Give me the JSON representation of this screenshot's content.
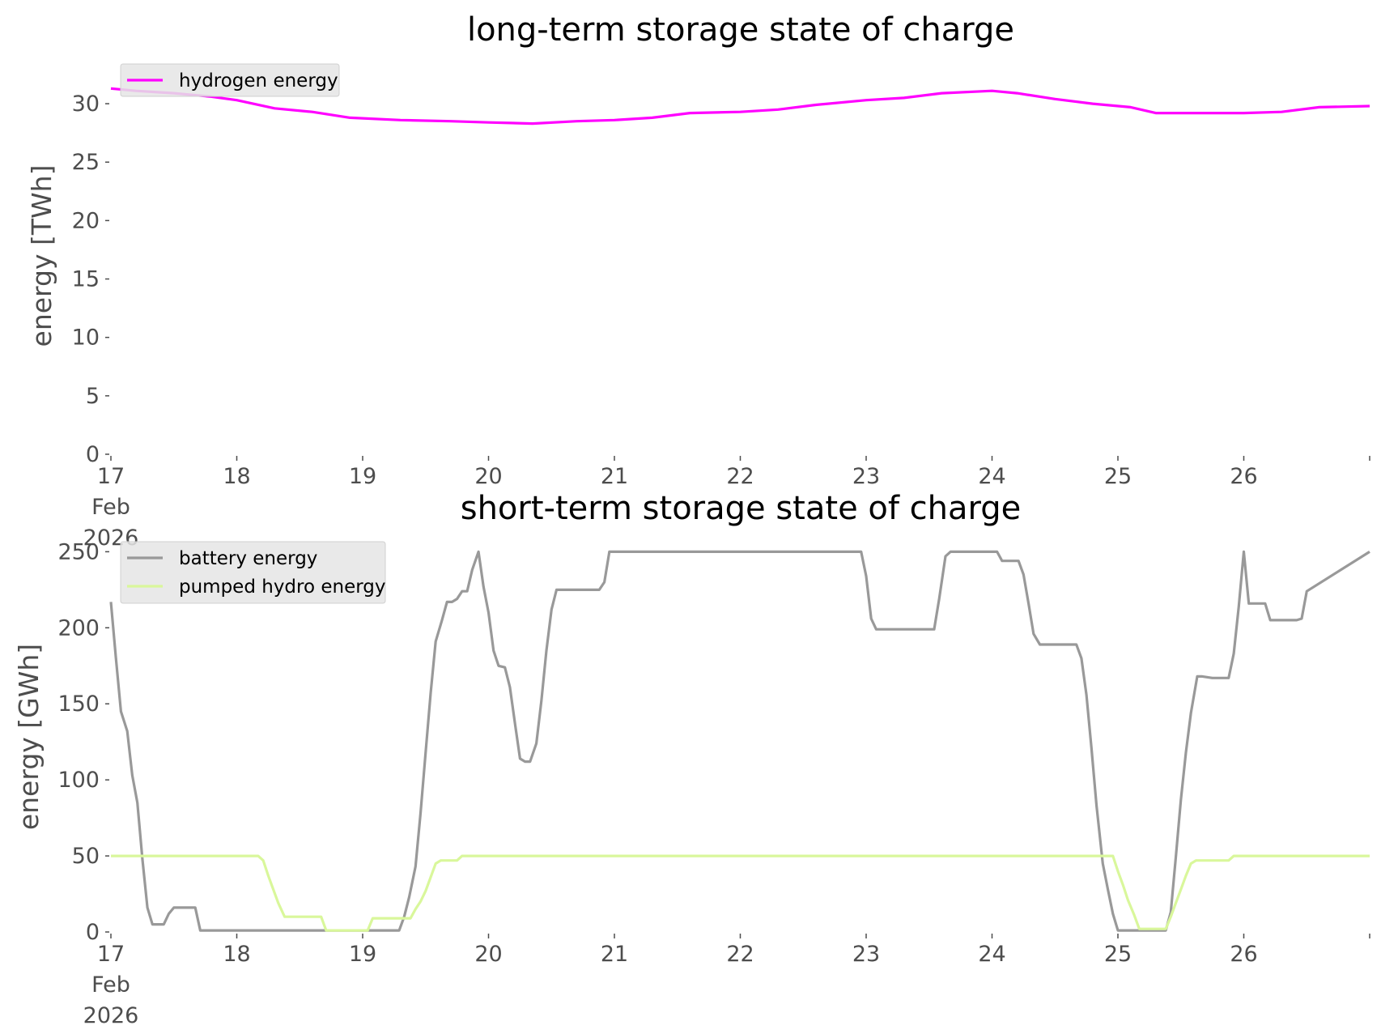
{
  "chart_data": [
    {
      "type": "line",
      "title": "long-term storage state of charge",
      "xlabel": "",
      "ylabel": "energy [TWh]",
      "xlim": [
        17,
        27
      ],
      "ylim": [
        0,
        32.5
      ],
      "yticks": [
        0,
        5,
        10,
        15,
        20,
        25,
        30
      ],
      "ytick_labels": [
        "0",
        "5",
        "10",
        "15",
        "20",
        "25",
        "30"
      ],
      "xticks": [
        17,
        18,
        19,
        20,
        21,
        22,
        23,
        24,
        25,
        26
      ],
      "xtick_labels": [
        "17\nFeb\n2026",
        "18",
        "19",
        "20",
        "21",
        "22",
        "23",
        "24",
        "25",
        "26"
      ],
      "legend": "upper-left",
      "grid": false,
      "series": [
        {
          "name": "hydrogen energy",
          "color": "#ff00ff",
          "x": [
            17.0,
            17.2,
            17.5,
            17.8,
            18.0,
            18.3,
            18.6,
            18.9,
            19.3,
            19.7,
            20.0,
            20.35,
            20.7,
            21.0,
            21.3,
            21.6,
            22.0,
            22.3,
            22.6,
            23.0,
            23.3,
            23.6,
            24.0,
            24.2,
            24.5,
            24.8,
            25.1,
            25.3,
            25.5,
            25.8,
            26.0,
            26.3,
            26.6,
            27.0
          ],
          "y": [
            31.3,
            31.1,
            30.9,
            30.6,
            30.3,
            29.6,
            29.3,
            28.8,
            28.6,
            28.5,
            28.4,
            28.3,
            28.5,
            28.6,
            28.8,
            29.2,
            29.3,
            29.5,
            29.9,
            30.3,
            30.5,
            30.9,
            31.1,
            30.9,
            30.4,
            30.0,
            29.7,
            29.2,
            29.2,
            29.2,
            29.2,
            29.3,
            29.7,
            29.8
          ]
        }
      ]
    },
    {
      "type": "line",
      "title": "short-term storage state of charge",
      "xlabel": "",
      "ylabel": "energy [GWh]",
      "xlim": [
        17,
        27
      ],
      "ylim": [
        0,
        255
      ],
      "yticks": [
        0,
        50,
        100,
        150,
        200,
        250
      ],
      "ytick_labels": [
        "0",
        "50",
        "100",
        "150",
        "200",
        "250"
      ],
      "xticks": [
        17,
        18,
        19,
        20,
        21,
        22,
        23,
        24,
        25,
        26
      ],
      "xtick_labels": [
        "17\nFeb\n2026",
        "18",
        "19",
        "20",
        "21",
        "22",
        "23",
        "24",
        "25",
        "26"
      ],
      "legend": "upper-left",
      "grid": false,
      "series": [
        {
          "name": "battery energy",
          "color": "#999999",
          "x": [
            17.0,
            17.04,
            17.08,
            17.13,
            17.17,
            17.21,
            17.25,
            17.29,
            17.33,
            17.42,
            17.46,
            17.5,
            17.58,
            17.67,
            17.71,
            19.29,
            19.33,
            19.37,
            19.42,
            19.46,
            19.5,
            19.54,
            19.58,
            19.63,
            19.67,
            19.71,
            19.75,
            19.79,
            19.83,
            19.87,
            19.92,
            19.96,
            20.0,
            20.04,
            20.08,
            20.13,
            20.17,
            20.21,
            20.25,
            20.29,
            20.33,
            20.38,
            20.42,
            20.46,
            20.5,
            20.54,
            20.58,
            20.63,
            20.88,
            20.92,
            20.96,
            22.96,
            23.0,
            23.04,
            23.08,
            23.13,
            23.54,
            23.58,
            23.63,
            23.67,
            23.71,
            24.04,
            24.08,
            24.13,
            24.21,
            24.25,
            24.29,
            24.33,
            24.38,
            24.42,
            24.46,
            24.67,
            24.71,
            24.75,
            24.79,
            24.83,
            24.88,
            24.92,
            24.96,
            25.0,
            25.38,
            25.42,
            25.46,
            25.5,
            25.54,
            25.58,
            25.63,
            25.67,
            25.75,
            25.88,
            25.92,
            25.96,
            26.0,
            26.04,
            26.13,
            26.17,
            26.21,
            26.42,
            26.46,
            26.5,
            27.0
          ],
          "y": [
            217,
            180,
            145,
            132,
            103,
            85,
            48,
            16,
            5,
            5,
            12,
            16,
            16,
            16,
            1,
            1,
            10,
            23,
            43,
            78,
            118,
            157,
            191,
            205,
            217,
            217,
            219,
            224,
            224,
            238,
            250,
            227,
            210,
            185,
            175,
            174,
            161,
            137,
            114,
            112,
            112,
            124,
            152,
            185,
            212,
            225,
            225,
            225,
            225,
            230,
            250,
            250,
            234,
            206,
            199,
            199,
            199,
            219,
            247,
            250,
            250,
            250,
            244,
            244,
            244,
            235,
            216,
            196,
            189,
            189,
            189,
            189,
            180,
            156,
            121,
            83,
            45,
            28,
            12,
            1,
            1,
            13,
            49,
            87,
            118,
            144,
            168,
            168,
            167,
            167,
            183,
            214,
            250,
            216,
            216,
            216,
            205,
            205,
            206,
            224,
            250
          ]
        },
        {
          "name": "pumped hydro energy",
          "color": "#d9f79b",
          "x": [
            17.0,
            18.17,
            18.21,
            18.25,
            18.29,
            18.33,
            18.38,
            18.42,
            18.67,
            18.71,
            19.04,
            19.08,
            19.38,
            19.42,
            19.46,
            19.5,
            19.54,
            19.58,
            19.62,
            19.75,
            19.79,
            24.96,
            25.0,
            25.04,
            25.08,
            25.13,
            25.17,
            25.38,
            25.42,
            25.46,
            25.5,
            25.54,
            25.58,
            25.62,
            25.67,
            25.88,
            25.92,
            27.0
          ],
          "y": [
            50,
            50,
            47,
            37,
            28,
            19,
            10,
            10,
            10,
            1,
            1,
            9,
            9,
            15,
            20,
            27,
            36,
            45,
            47,
            47,
            50,
            50,
            40,
            31,
            21,
            11,
            2,
            2,
            10,
            19,
            28,
            37,
            45,
            47,
            47,
            47,
            50,
            50
          ]
        }
      ]
    }
  ]
}
